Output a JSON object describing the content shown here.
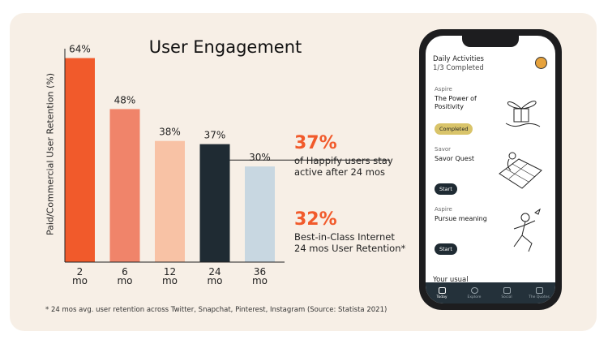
{
  "chart_data": {
    "type": "bar",
    "title": "User Engagement",
    "ylabel": "Paid/Commercial User Retention (%)",
    "categories": [
      [
        "2",
        "mo"
      ],
      [
        "6",
        "mo"
      ],
      [
        "12",
        "mo"
      ],
      [
        "24",
        "mo"
      ],
      [
        "36",
        "mo"
      ]
    ],
    "values": [
      64,
      48,
      38,
      37,
      30
    ],
    "value_labels": [
      "64%",
      "48%",
      "38%",
      "37%",
      "30%"
    ],
    "colors": [
      "#f15a2b",
      "#f0846a",
      "#f8c2a5",
      "#1f2b33",
      "#c8d7e1"
    ],
    "ylim": [
      0,
      70
    ],
    "reference_line": 32
  },
  "stats": [
    {
      "big": "37%",
      "text": [
        "of Happify users stay",
        "active after 24 mos"
      ]
    },
    {
      "big": "32%",
      "text": [
        "Best-in-Class Internet",
        "24 mos User Retention*"
      ]
    }
  ],
  "footnote": "* 24 mos avg. user retention across Twitter, Snapchat, Pinterest, Instagram (Source: Statista 2021)",
  "phone": {
    "header": "Daily Activities",
    "progress": "1/3 Completed",
    "activities": [
      {
        "category": "Aspire",
        "name": "The Power of Positivity",
        "button": "Completed",
        "color": "#f6dd78"
      },
      {
        "category": "Savor",
        "name": "Savor Quest",
        "button": "Start",
        "color": "#f4c9cf"
      },
      {
        "category": "Aspire",
        "name": "Pursue meaning",
        "button": "Start",
        "color": "#cfe3a4"
      }
    ],
    "section": "Your usual",
    "tabs": [
      "Today",
      "Explore",
      "Social",
      "The Quotes"
    ]
  }
}
